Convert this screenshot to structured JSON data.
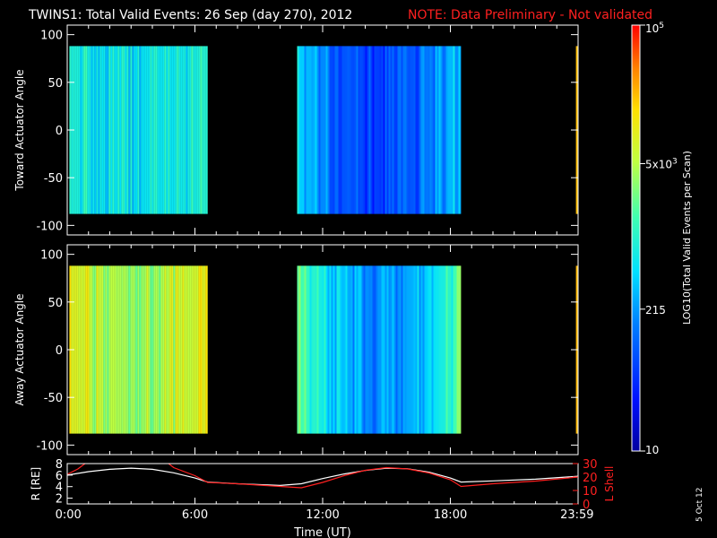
{
  "title": {
    "main": "TWINS1: Total Valid Events: 26 Sep (day 270), 2012",
    "note": "NOTE: Data Preliminary - Not validated"
  },
  "footer": {
    "date_stamp": "5 Oct 12"
  },
  "colors": {
    "background": "#000000",
    "axes": "#ffffff",
    "note": "#ff2020",
    "r_line": "#ffffff",
    "lshell_line": "#ff2020"
  },
  "chart_data": [
    {
      "type": "heatmap",
      "ylabel": "Toward Actuator Angle",
      "ylim": [
        -110,
        110
      ],
      "yticks": [
        100,
        50,
        0,
        -50,
        -100
      ],
      "xlim": [
        0,
        24
      ],
      "angle_range": [
        -88,
        88
      ],
      "data_segments": [
        {
          "start": 0.1,
          "end": 6.6
        },
        {
          "start": 10.8,
          "end": 18.5
        },
        {
          "start": 23.9,
          "end": 24.0
        }
      ],
      "colorbar": {
        "label": "LOG10(Total Valid Events per Scan)",
        "scale": "log",
        "range": [
          10,
          100000
        ],
        "ticks": [
          {
            "value": 10,
            "label": "10"
          },
          {
            "value": 215,
            "label": "215"
          },
          {
            "value": 5000,
            "label": "5x10^3"
          },
          {
            "value": 100000,
            "label": "10^5"
          }
        ]
      }
    },
    {
      "type": "heatmap",
      "ylabel": "Away Actuator Angle",
      "ylim": [
        -110,
        110
      ],
      "yticks": [
        100,
        50,
        0,
        -50,
        -100
      ],
      "xlim": [
        0,
        24
      ],
      "angle_range": [
        -88,
        88
      ],
      "data_segments": [
        {
          "start": 0.1,
          "end": 6.6
        },
        {
          "start": 10.8,
          "end": 18.5
        },
        {
          "start": 23.9,
          "end": 24.0
        }
      ]
    },
    {
      "type": "line",
      "xlabel": "Time (UT)",
      "xlim": [
        0,
        24
      ],
      "xticks": [
        {
          "value": 0.05,
          "label": "0:00"
        },
        {
          "value": 6,
          "label": "6:00"
        },
        {
          "value": 12,
          "label": "12:00"
        },
        {
          "value": 18,
          "label": "18:00"
        },
        {
          "value": 23.95,
          "label": "23:59"
        }
      ],
      "ylabel_left": "R [RE]",
      "ylim_left": [
        1,
        8
      ],
      "yticks_left": [
        2,
        4,
        6,
        8
      ],
      "ylabel_right": "L Shell",
      "ylim_right": [
        0,
        30
      ],
      "yticks_right": [
        0,
        10,
        20,
        30
      ],
      "series": [
        {
          "axis": "left",
          "x": [
            0,
            1,
            2,
            3,
            4,
            5,
            6,
            6.6,
            8,
            10,
            11,
            12,
            13,
            14,
            15,
            16,
            17,
            18,
            18.5,
            20,
            22,
            24
          ],
          "values": [
            6.0,
            6.6,
            7.0,
            7.2,
            7.0,
            6.4,
            5.5,
            4.8,
            4.5,
            4.2,
            4.5,
            5.4,
            6.2,
            6.8,
            7.2,
            7.1,
            6.5,
            5.5,
            4.8,
            5.0,
            5.3,
            5.8
          ]
        },
        {
          "axis": "right",
          "x": [
            0,
            0.5,
            1,
            4.6,
            5,
            6,
            6.6,
            8,
            10,
            11,
            12,
            13,
            14,
            15,
            16,
            17,
            18,
            18.5,
            20,
            22,
            24
          ],
          "values": [
            22,
            26,
            32,
            32,
            27,
            21,
            16,
            15,
            13,
            12,
            16,
            21,
            25,
            27,
            26,
            23,
            18,
            13,
            15,
            17,
            20
          ]
        }
      ]
    }
  ]
}
